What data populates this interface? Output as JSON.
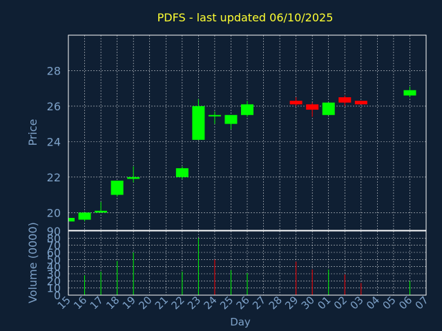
{
  "colors": {
    "background": "#0f1f33",
    "title": "#ffff33",
    "axis_text": "#7ea2c9",
    "frame": "#ffffff",
    "grid": "#ffffff",
    "up": "#00ff00",
    "down": "#ff0000"
  },
  "chart_data": [
    {
      "type": "candlestick",
      "title": "PDFS - last updated 06/10/2025",
      "ylabel": "Price",
      "ylim": [
        19,
        30
      ],
      "yticks": [
        20,
        22,
        24,
        26,
        28
      ],
      "grid": true,
      "x_slots": [
        "15",
        "16",
        "17",
        "18",
        "19",
        "20",
        "21",
        "22",
        "23",
        "24",
        "25",
        "26",
        "27",
        "28",
        "29",
        "30",
        "01",
        "02",
        "03",
        "04",
        "05",
        "06",
        "07"
      ],
      "candles": [
        {
          "x": "15",
          "open": 19.5,
          "close": 19.7,
          "high": 19.7,
          "low": 19.5
        },
        {
          "x": "16",
          "open": 19.6,
          "close": 20.0,
          "high": 20.0,
          "low": 19.5
        },
        {
          "x": "17",
          "open": 20.0,
          "close": 20.1,
          "high": 20.6,
          "low": 20.0
        },
        {
          "x": "18",
          "open": 21.0,
          "close": 21.8,
          "high": 21.8,
          "low": 20.9
        },
        {
          "x": "19",
          "open": 21.9,
          "close": 22.0,
          "high": 22.6,
          "low": 21.7
        },
        {
          "x": "22",
          "open": 22.0,
          "close": 22.5,
          "high": 22.6,
          "low": 21.9
        },
        {
          "x": "23",
          "open": 24.1,
          "close": 26.0,
          "high": 26.4,
          "low": 24.1
        },
        {
          "x": "24",
          "open": 25.5,
          "close": 25.5,
          "high": 25.7,
          "low": 25.0
        },
        {
          "x": "25",
          "open": 25.0,
          "close": 25.5,
          "high": 25.5,
          "low": 24.7
        },
        {
          "x": "26",
          "open": 25.5,
          "close": 26.1,
          "high": 26.3,
          "low": 25.4
        },
        {
          "x": "29",
          "open": 26.3,
          "close": 26.1,
          "high": 26.5,
          "low": 26.0
        },
        {
          "x": "30",
          "open": 26.1,
          "close": 25.8,
          "high": 26.2,
          "low": 25.4
        },
        {
          "x": "01",
          "open": 25.5,
          "close": 26.2,
          "high": 26.2,
          "low": 25.5
        },
        {
          "x": "02",
          "open": 26.5,
          "close": 26.2,
          "high": 26.6,
          "low": 26.0
        },
        {
          "x": "03",
          "open": 26.3,
          "close": 26.1,
          "high": 26.3,
          "low": 26.1
        },
        {
          "x": "06",
          "open": 26.6,
          "close": 26.9,
          "high": 27.1,
          "low": 26.5
        }
      ]
    },
    {
      "type": "bar",
      "ylabel": "Volume (0000)",
      "xlabel": "Day",
      "ylim": [
        0,
        90
      ],
      "yticks": [
        0,
        10,
        20,
        30,
        40,
        50,
        60,
        70,
        80,
        90
      ],
      "grid": true,
      "bars": [
        {
          "x": "16",
          "value": 28,
          "direction": "up"
        },
        {
          "x": "17",
          "value": 33,
          "direction": "up"
        },
        {
          "x": "18",
          "value": 48,
          "direction": "up"
        },
        {
          "x": "19",
          "value": 60,
          "direction": "up"
        },
        {
          "x": "22",
          "value": 33,
          "direction": "up"
        },
        {
          "x": "23",
          "value": 80,
          "direction": "up"
        },
        {
          "x": "24",
          "value": 50,
          "direction": "down"
        },
        {
          "x": "25",
          "value": 35,
          "direction": "up"
        },
        {
          "x": "26",
          "value": 31,
          "direction": "up"
        },
        {
          "x": "29",
          "value": 47,
          "direction": "down"
        },
        {
          "x": "30",
          "value": 36,
          "direction": "down"
        },
        {
          "x": "01",
          "value": 36,
          "direction": "up"
        },
        {
          "x": "02",
          "value": 29,
          "direction": "down"
        },
        {
          "x": "03",
          "value": 17,
          "direction": "down"
        },
        {
          "x": "06",
          "value": 20,
          "direction": "up"
        }
      ]
    }
  ]
}
